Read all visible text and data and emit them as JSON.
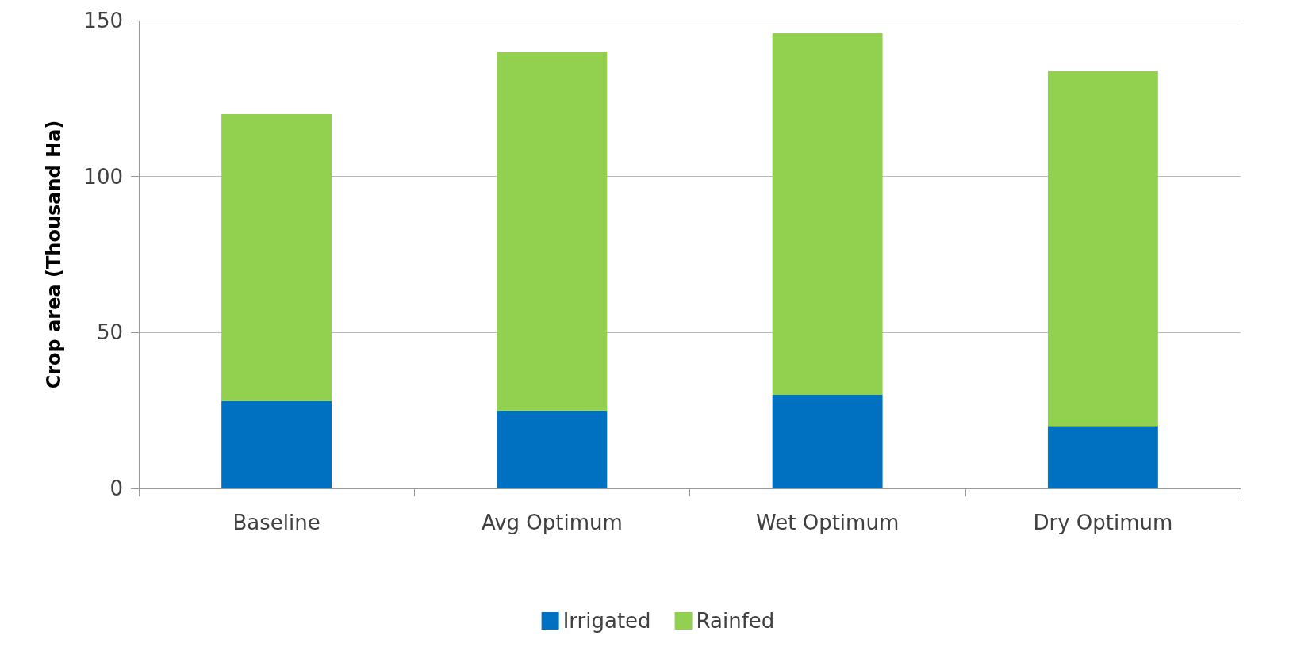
{
  "chart_data": {
    "type": "bar",
    "stacked": true,
    "ylabel": "Crop area (Thousand Ha)",
    "categories": [
      "Baseline",
      "Avg Optimum",
      "Wet Optimum",
      "Dry Optimum"
    ],
    "series": [
      {
        "name": "Irrigated",
        "color": "#0070c0",
        "values": [
          28,
          25,
          30,
          20
        ]
      },
      {
        "name": "Rainfed",
        "color": "#92d050",
        "values": [
          92,
          115,
          116,
          114
        ]
      }
    ],
    "ylim": [
      0,
      150
    ],
    "yticks": [
      0,
      50,
      100,
      150
    ],
    "grid": "y",
    "legend": "bottom"
  }
}
